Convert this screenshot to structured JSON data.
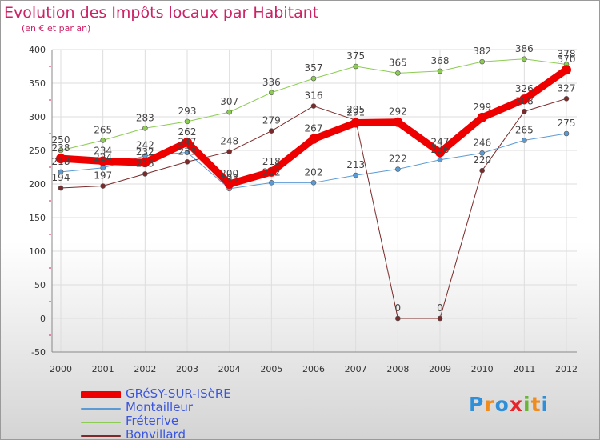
{
  "title": "Evolution des Impôts locaux par Habitant",
  "subtitle": "(en € et par an)",
  "logo": "Proxiti",
  "colors": {
    "title": "#cc2266",
    "legend_text": "#3a55dd",
    "grid": "#dddddd",
    "value_label": "#444444"
  },
  "chart_data": {
    "type": "line",
    "title": "Evolution des Impôts locaux par Habitant",
    "subtitle": "(en € et par an)",
    "xlabel": "",
    "ylabel": "",
    "x": [
      "2000",
      "2001",
      "2002",
      "2003",
      "2004",
      "2005",
      "2006",
      "2007",
      "2008",
      "2009",
      "2010",
      "2011",
      "2012"
    ],
    "ylim": [
      -50,
      400
    ],
    "yticks": [
      "-50",
      "0",
      "50",
      "100",
      "150",
      "200",
      "250",
      "300",
      "350",
      "400"
    ],
    "grid": true,
    "legend_position": "bottom-left",
    "series": [
      {
        "name": "GRéSY-SUR-ISèRE",
        "color": "#ee0000",
        "width": 9,
        "values": [
          238,
          234,
          232,
          262,
          200,
          218,
          267,
          291,
          292,
          247,
          299,
          326,
          370
        ],
        "labels": [
          "238",
          "234",
          "232",
          "262",
          "200",
          "218",
          "267",
          "291",
          "292",
          "247",
          "299",
          "326",
          "370"
        ]
      },
      {
        "name": "Montailleur",
        "color": "#5b9bd5",
        "width": 1,
        "values": [
          218,
          224,
          242,
          247,
          193,
          202,
          202,
          213,
          222,
          236,
          246,
          265,
          275
        ],
        "labels": [
          "218",
          "224",
          "242",
          "247",
          "193",
          "202",
          "202",
          "213",
          "222",
          "236",
          "246",
          "265",
          "275"
        ]
      },
      {
        "name": "Fréterive",
        "color": "#8ccc52",
        "width": 1,
        "values": [
          250,
          265,
          283,
          293,
          307,
          336,
          357,
          375,
          365,
          368,
          382,
          386,
          378
        ],
        "labels": [
          "250",
          "265",
          "283",
          "293",
          "307",
          "336",
          "357",
          "375",
          "365",
          "368",
          "382",
          "386",
          "378"
        ]
      },
      {
        "name": "Bonvillard",
        "color": "#7a2a2a",
        "width": 1,
        "values": [
          194,
          197,
          215,
          233,
          248,
          279,
          316,
          295,
          0,
          0,
          220,
          308,
          327
        ],
        "labels": [
          "194",
          "197",
          "215",
          "233",
          "248",
          "279",
          "316",
          "295",
          "0",
          "0",
          "220",
          "308",
          "327"
        ]
      }
    ]
  }
}
